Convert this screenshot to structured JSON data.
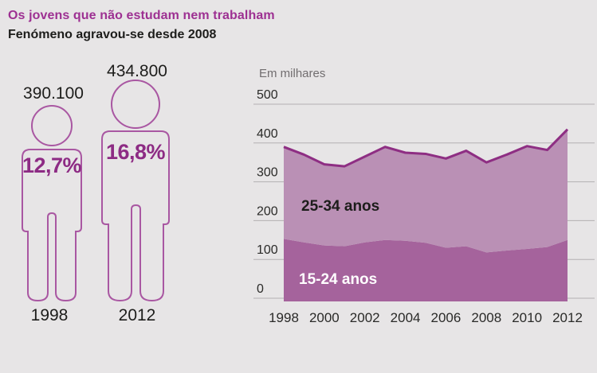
{
  "header": {
    "title": "Os jovens que não estudam nem trabalham",
    "subtitle": "Fenómeno agravou-se desde 2008"
  },
  "pictograms": [
    {
      "value": "390.100",
      "percent": "12,7%",
      "year": "1998"
    },
    {
      "value": "434.800",
      "percent": "16,8%",
      "year": "2012"
    }
  ],
  "chart_data": {
    "type": "area",
    "stacked": true,
    "unit_label": "Em milhares",
    "x": [
      1998,
      1999,
      2000,
      2001,
      2002,
      2003,
      2004,
      2005,
      2006,
      2007,
      2008,
      2009,
      2010,
      2011,
      2012
    ],
    "x_tick_labels": [
      "1998",
      "2000",
      "2002",
      "2004",
      "2006",
      "2008",
      "2010",
      "2012"
    ],
    "series": [
      {
        "name": "15-24 anos",
        "fill": "#a5639c",
        "label_color": "#ffffff",
        "values": [
          153,
          144,
          136,
          134,
          144,
          150,
          148,
          143,
          130,
          134,
          118,
          123,
          127,
          132,
          150
        ]
      },
      {
        "name": "25-34 anos",
        "fill": "#ba90b5",
        "label_color": "#1d1d1b",
        "values": [
          237,
          226,
          209,
          206,
          221,
          240,
          227,
          229,
          230,
          246,
          232,
          247,
          265,
          250,
          285
        ]
      }
    ],
    "totals": [
      390,
      370,
      345,
      340,
      365,
      390,
      375,
      372,
      360,
      380,
      350,
      370,
      392,
      382,
      435
    ],
    "ylim": [
      0,
      500
    ],
    "y_ticks": [
      0,
      100,
      200,
      300,
      400,
      500
    ],
    "grid": true,
    "line_color": "#8e2e83",
    "legend_position": "inside-area"
  },
  "colors": {
    "background": "#e7e5e6",
    "accent_title": "#9d3092",
    "figure_outline": "#a957a2",
    "percent_text": "#8d2b84",
    "area_dark": "#a5639c",
    "area_light": "#ba90b5",
    "top_line": "#8e2e83",
    "gridline": "#b3b0b2"
  }
}
